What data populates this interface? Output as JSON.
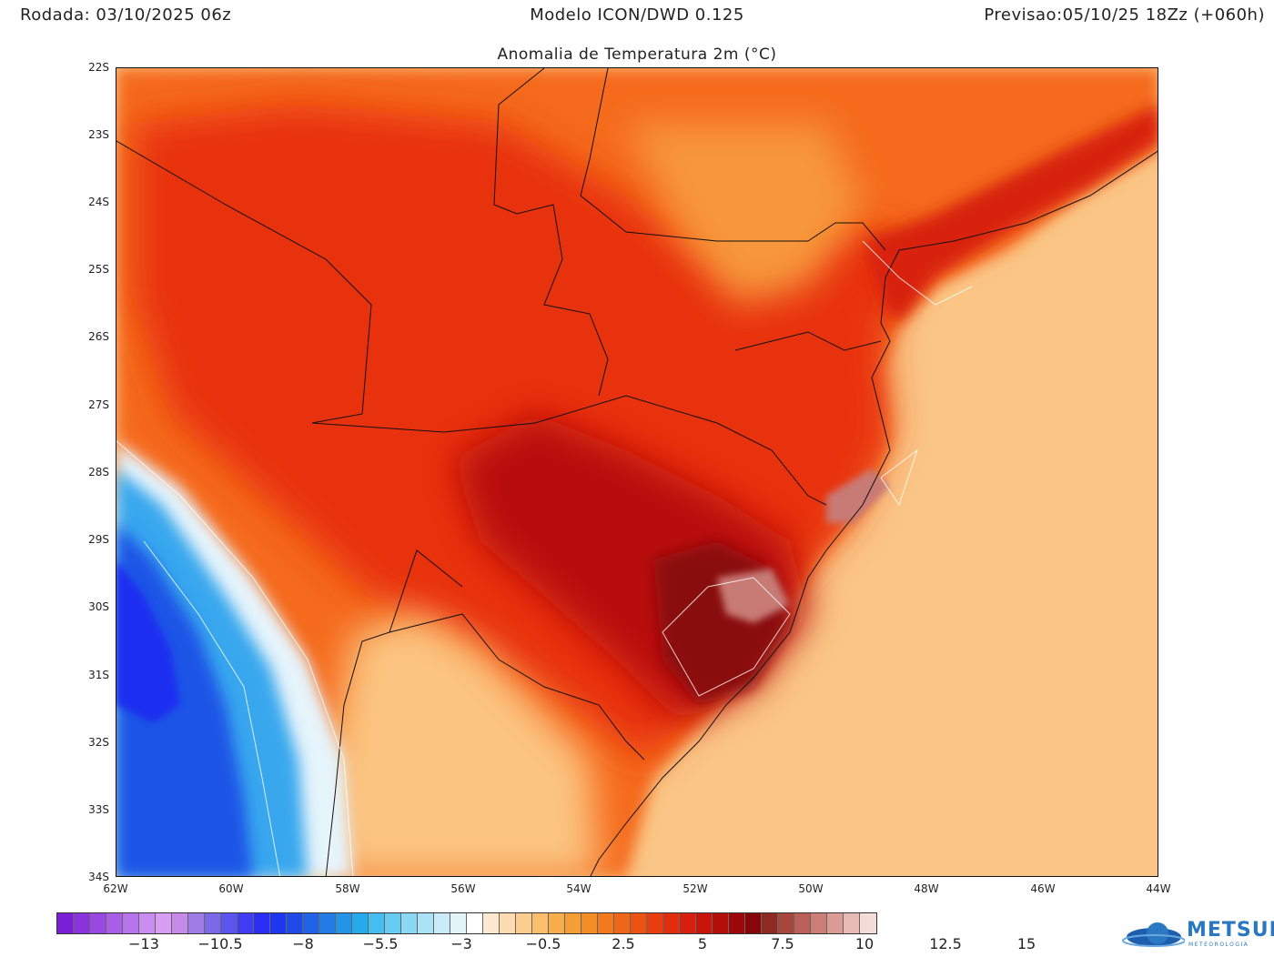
{
  "header": {
    "run": "Rodada: 03/10/2025 06z",
    "model": "Modelo ICON/DWD 0.125",
    "forecast": "Previsao:05/10/25 18Zz (+060h)"
  },
  "map_title": "Anomalia de Temperatura 2m (°C)",
  "lat_labels": [
    "22S",
    "23S",
    "24S",
    "25S",
    "26S",
    "27S",
    "28S",
    "29S",
    "30S",
    "31S",
    "32S",
    "33S",
    "34S"
  ],
  "lon_labels": [
    "62W",
    "60W",
    "58W",
    "56W",
    "54W",
    "52W",
    "50W",
    "48W",
    "46W",
    "44W"
  ],
  "colorbar": {
    "labels": [
      "−13",
      "−10.5",
      "−8",
      "−5.5",
      "−3",
      "−0.5",
      "2.5",
      "5",
      "7.5",
      "10",
      "12.5",
      "15"
    ],
    "colors": [
      "#7a1fd6",
      "#8b33dc",
      "#9a48e2",
      "#a95ee8",
      "#b874ec",
      "#c98cf0",
      "#d79ff4",
      "#c68ae8",
      "#a07de6",
      "#7a6ae8",
      "#5a55ee",
      "#3f3cf2",
      "#2a2ef4",
      "#1e36ee",
      "#1f4ae8",
      "#2162e6",
      "#237ce6",
      "#2394e8",
      "#25aaec",
      "#45beef",
      "#68ccf2",
      "#8ad8f4",
      "#aae3f6",
      "#c8edf8",
      "#e4f5fa",
      "#ffffff",
      "#fde9cf",
      "#fcdcb0",
      "#fbcd8e",
      "#fabe6c",
      "#f8ae4c",
      "#f69e36",
      "#f48c26",
      "#f27a1c",
      "#ef6616",
      "#ec5212",
      "#e83e10",
      "#e22c0e",
      "#d81e0c",
      "#c8140a",
      "#b40e0a",
      "#9e080a",
      "#86060a",
      "#8e2a22",
      "#a6463c",
      "#bb6058",
      "#cc7e76",
      "#dc9c96",
      "#e8bab6",
      "#f4dcd8"
    ]
  },
  "logo": {
    "name": "METSUL",
    "sub": "METEOROLOGIA"
  },
  "colors": {
    "hot_core": "#8a0a0a",
    "warm": "#f03a10",
    "ocean_warm": "#fbc98a",
    "cold": "#1f54e6"
  }
}
